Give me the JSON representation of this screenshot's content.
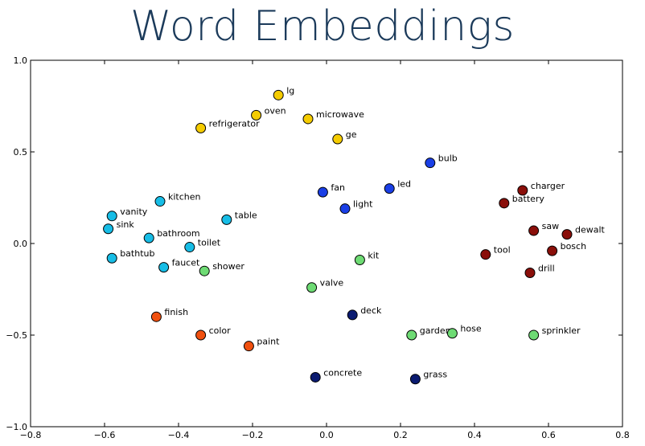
{
  "chart_data": {
    "type": "scatter",
    "title": "Word Embeddings",
    "xlabel": "",
    "ylabel": "",
    "xlim": [
      -0.8,
      0.8
    ],
    "ylim": [
      -1.0,
      1.0
    ],
    "x_ticks": [
      -0.8,
      -0.6,
      -0.4,
      -0.2,
      0.0,
      0.2,
      0.4,
      0.6,
      0.8
    ],
    "y_ticks": [
      -1.0,
      -0.5,
      0.0,
      0.5,
      1.0
    ],
    "x_tick_labels": [
      "−0.8",
      "−0.6",
      "−0.4",
      "−0.2",
      "0.0",
      "0.2",
      "0.4",
      "0.6",
      "0.8"
    ],
    "y_tick_labels": [
      "−1.0",
      "−0.5",
      "0.0",
      "0.5",
      "1.0"
    ],
    "grid": false,
    "points": [
      {
        "word": "lg",
        "x": -0.13,
        "y": 0.81,
        "color": "#f5cc00"
      },
      {
        "word": "oven",
        "x": -0.19,
        "y": 0.7,
        "color": "#f5cc00"
      },
      {
        "word": "microwave",
        "x": -0.05,
        "y": 0.68,
        "color": "#f5cc00"
      },
      {
        "word": "refrigerator",
        "x": -0.34,
        "y": 0.63,
        "color": "#f5cc00"
      },
      {
        "word": "ge",
        "x": 0.03,
        "y": 0.57,
        "color": "#f5cc00"
      },
      {
        "word": "bulb",
        "x": 0.28,
        "y": 0.44,
        "color": "#1a3fe6"
      },
      {
        "word": "fan",
        "x": -0.01,
        "y": 0.28,
        "color": "#1a3fe6"
      },
      {
        "word": "led",
        "x": 0.17,
        "y": 0.3,
        "color": "#1a3fe6"
      },
      {
        "word": "light",
        "x": 0.05,
        "y": 0.19,
        "color": "#1a3fe6"
      },
      {
        "word": "kitchen",
        "x": -0.45,
        "y": 0.23,
        "color": "#17bde6"
      },
      {
        "word": "vanity",
        "x": -0.58,
        "y": 0.15,
        "color": "#17bde6"
      },
      {
        "word": "sink",
        "x": -0.59,
        "y": 0.08,
        "color": "#17bde6"
      },
      {
        "word": "table",
        "x": -0.27,
        "y": 0.13,
        "color": "#17bde6"
      },
      {
        "word": "bathroom",
        "x": -0.48,
        "y": 0.03,
        "color": "#17bde6"
      },
      {
        "word": "toilet",
        "x": -0.37,
        "y": -0.02,
        "color": "#17bde6"
      },
      {
        "word": "bathtub",
        "x": -0.58,
        "y": -0.08,
        "color": "#17bde6"
      },
      {
        "word": "faucet",
        "x": -0.44,
        "y": -0.13,
        "color": "#17bde6"
      },
      {
        "word": "shower",
        "x": -0.33,
        "y": -0.15,
        "color": "#6edb74"
      },
      {
        "word": "kit",
        "x": 0.09,
        "y": -0.09,
        "color": "#6edb74"
      },
      {
        "word": "valve",
        "x": -0.04,
        "y": -0.24,
        "color": "#6edb74"
      },
      {
        "word": "garden",
        "x": 0.23,
        "y": -0.5,
        "color": "#6edb74"
      },
      {
        "word": "hose",
        "x": 0.34,
        "y": -0.49,
        "color": "#6edb74"
      },
      {
        "word": "sprinkler",
        "x": 0.56,
        "y": -0.5,
        "color": "#6edb74"
      },
      {
        "word": "charger",
        "x": 0.53,
        "y": 0.29,
        "color": "#8a0f0a"
      },
      {
        "word": "battery",
        "x": 0.48,
        "y": 0.22,
        "color": "#8a0f0a"
      },
      {
        "word": "saw",
        "x": 0.56,
        "y": 0.07,
        "color": "#8a0f0a"
      },
      {
        "word": "dewalt",
        "x": 0.65,
        "y": 0.05,
        "color": "#8a0f0a"
      },
      {
        "word": "tool",
        "x": 0.43,
        "y": -0.06,
        "color": "#8a0f0a"
      },
      {
        "word": "bosch",
        "x": 0.61,
        "y": -0.04,
        "color": "#8a0f0a"
      },
      {
        "word": "drill",
        "x": 0.55,
        "y": -0.16,
        "color": "#8a0f0a"
      },
      {
        "word": "finish",
        "x": -0.46,
        "y": -0.4,
        "color": "#f0500f"
      },
      {
        "word": "color",
        "x": -0.34,
        "y": -0.5,
        "color": "#f0500f"
      },
      {
        "word": "paint",
        "x": -0.21,
        "y": -0.56,
        "color": "#f0500f"
      },
      {
        "word": "deck",
        "x": 0.07,
        "y": -0.39,
        "color": "#0a1a70"
      },
      {
        "word": "concrete",
        "x": -0.03,
        "y": -0.73,
        "color": "#0a1a70"
      },
      {
        "word": "grass",
        "x": 0.24,
        "y": -0.74,
        "color": "#0a1a70"
      }
    ]
  }
}
